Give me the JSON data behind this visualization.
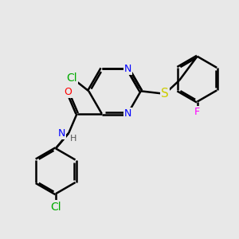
{
  "background_color": "#e8e8e8",
  "bond_color": "#000000",
  "bond_width": 1.8,
  "dbo": 0.018,
  "atom_colors": {
    "N": "#0000ff",
    "O": "#ff0000",
    "S": "#cccc00",
    "Cl1": "#00aa00",
    "Cl2": "#00aa00",
    "F": "#ff00ff",
    "H": "#555555"
  },
  "font_size": 9,
  "fig_width": 3.0,
  "fig_height": 3.0,
  "dpi": 100,
  "xlim": [
    0,
    10
  ],
  "ylim": [
    0,
    10
  ]
}
